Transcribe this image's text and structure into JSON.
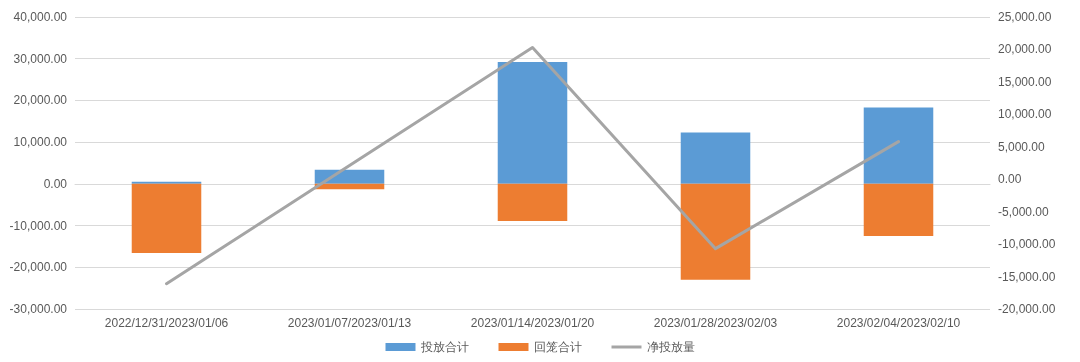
{
  "chart_data": {
    "type": "bar",
    "categories": [
      "2022/12/31/2023/01/06",
      "2023/01/07/2023/01/13",
      "2023/01/14/2023/01/20",
      "2023/01/28/2023/02/03",
      "2023/02/04/2023/02/10"
    ],
    "series": [
      {
        "name": "投放合计",
        "color": "#5b9bd5",
        "values": [
          500,
          3400,
          29200,
          12300,
          18300
        ]
      },
      {
        "name": "回笼合计",
        "color": "#ed7d31",
        "values": [
          -16600,
          -1300,
          -8900,
          -23000,
          -12500
        ]
      },
      {
        "name": "净投放量",
        "type": "line",
        "axis": "y2",
        "color": "#a5a5a5",
        "values": [
          -16100,
          2100,
          20300,
          -10700,
          5800
        ]
      }
    ],
    "ylim": [
      -30000,
      40000
    ],
    "yticks": [
      {
        "value": -30000,
        "label": "-30,000.00"
      },
      {
        "value": -20000,
        "label": "-20,000.00"
      },
      {
        "value": -10000,
        "label": "-10,000.00"
      },
      {
        "value": 0,
        "label": "0.00"
      },
      {
        "value": 10000,
        "label": "10,000.00"
      },
      {
        "value": 20000,
        "label": "20,000.00"
      },
      {
        "value": 30000,
        "label": "30,000.00"
      },
      {
        "value": 40000,
        "label": "40,000.00"
      }
    ],
    "y2lim": [
      -20000,
      25000
    ],
    "y2ticks": [
      {
        "value": -20000,
        "label": "-20,000.00"
      },
      {
        "value": -15000,
        "label": "-15,000.00"
      },
      {
        "value": -10000,
        "label": "-10,000.00"
      },
      {
        "value": -5000,
        "label": "-5,000.00"
      },
      {
        "value": 0,
        "label": "0.00"
      },
      {
        "value": 5000,
        "label": "5,000.00"
      },
      {
        "value": 10000,
        "label": "10,000.00"
      },
      {
        "value": 15000,
        "label": "15,000.00"
      },
      {
        "value": 20000,
        "label": "20,000.00"
      },
      {
        "value": 25000,
        "label": "25,000.00"
      }
    ],
    "stacked": true,
    "grid": "y",
    "legend": "bottom",
    "marker": "none",
    "line_style": "solid"
  }
}
